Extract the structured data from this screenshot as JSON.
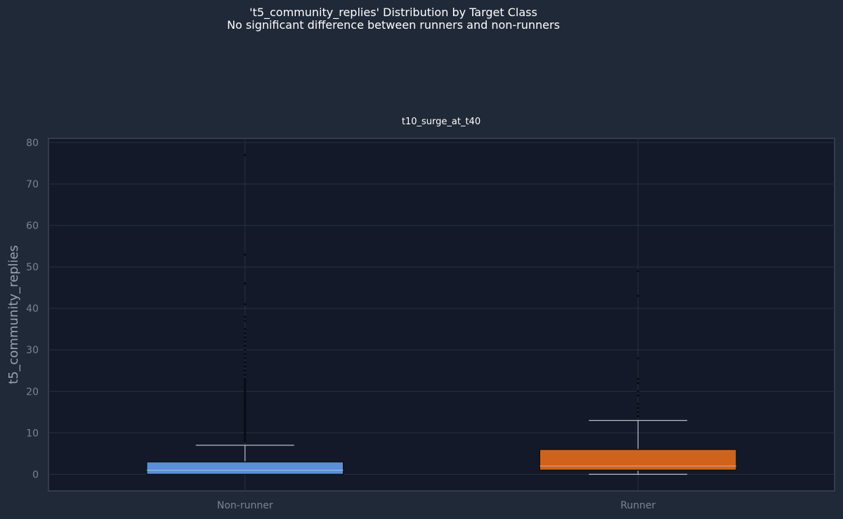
{
  "chart_data": {
    "type": "box",
    "title": "'t5_community_replies' Distribution by Target Class",
    "subtitle": "No significant difference between runners and non-runners",
    "panel_title": "t10_surge_at_t40",
    "xlabel": "",
    "ylabel": "t5_community_replies",
    "ylim": [
      -4,
      81
    ],
    "yticks": [
      0,
      10,
      20,
      30,
      40,
      50,
      60,
      70,
      80
    ],
    "grid": true,
    "categories": [
      "Non-runner",
      "Runner"
    ],
    "boxes": [
      {
        "name": "Non-runner",
        "color": "#5b8fd9",
        "whisker_low": 0,
        "q1": 0,
        "median": 1,
        "q3": 3,
        "whisker_high": 7,
        "outliers": [
          8,
          8.5,
          9,
          9.5,
          10,
          10.5,
          11,
          11.5,
          12,
          12.5,
          13,
          13.5,
          14,
          14.5,
          15,
          15.5,
          16,
          16.5,
          17,
          17.5,
          18,
          18.5,
          19,
          19.5,
          20,
          20.5,
          21,
          21.5,
          22,
          22.5,
          23,
          24,
          25,
          26,
          27,
          28,
          29,
          30,
          31,
          32,
          33,
          34,
          35,
          37,
          38,
          41,
          46,
          53,
          77
        ]
      },
      {
        "name": "Runner",
        "color": "#cf631b",
        "whisker_low": 0,
        "q1": 1,
        "median": 2,
        "q3": 6,
        "whisker_high": 13,
        "outliers": [
          14,
          15,
          16,
          17,
          19,
          20,
          22,
          23,
          28,
          43,
          49
        ]
      }
    ]
  }
}
